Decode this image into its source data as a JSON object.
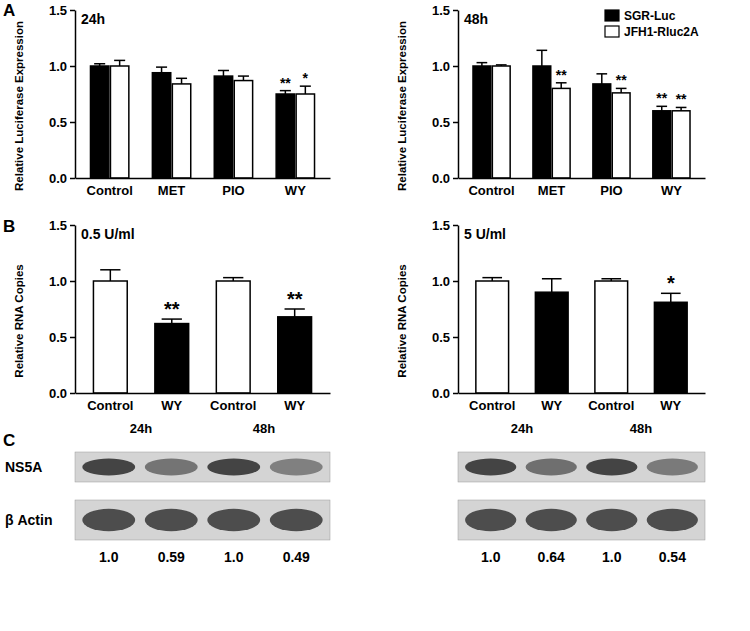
{
  "panels": [
    "A",
    "B",
    "C"
  ],
  "chart_data": [
    {
      "type": "bar",
      "title": "24h",
      "y_label": "Relative Luciferase Expression",
      "categories": [
        "Control",
        "MET",
        "PIO",
        "WY"
      ],
      "series": [
        {
          "name": "SGR-Luc",
          "color": "#000000",
          "values": [
            1.0,
            0.94,
            0.91,
            0.75
          ],
          "errors": [
            0.02,
            0.05,
            0.05,
            0.03
          ],
          "annotations": [
            null,
            null,
            null,
            "**"
          ]
        },
        {
          "name": "JFH1-Rluc2A",
          "color": "#ffffff",
          "values": [
            1.0,
            0.84,
            0.87,
            0.75
          ],
          "errors": [
            0.05,
            0.05,
            0.04,
            0.07
          ],
          "annotations": [
            null,
            null,
            null,
            "*"
          ]
        }
      ],
      "ylim": [
        0,
        1.5
      ],
      "yticks": [
        {
          "value": 0,
          "label": "0.0"
        },
        {
          "value": 0.5,
          "label": "0.5"
        },
        {
          "value": 1,
          "label": "1.0"
        },
        {
          "value": 1.5,
          "label": "1.5"
        }
      ]
    },
    {
      "type": "bar",
      "title": "48h",
      "y_label": "Relative Luciferase Expression",
      "categories": [
        "Control",
        "MET",
        "PIO",
        "WY"
      ],
      "series": [
        {
          "name": "SGR-Luc",
          "color": "#000000",
          "values": [
            1.0,
            1.0,
            0.84,
            0.6
          ],
          "errors": [
            0.03,
            0.14,
            0.09,
            0.04
          ],
          "annotations": [
            null,
            null,
            null,
            "**"
          ]
        },
        {
          "name": "JFH1-Rluc2A",
          "color": "#ffffff",
          "values": [
            1.0,
            0.8,
            0.76,
            0.6
          ],
          "errors": [
            0.01,
            0.05,
            0.04,
            0.03
          ],
          "annotations": [
            null,
            "**",
            "**",
            "**"
          ]
        }
      ],
      "legend": "upper right",
      "ylim": [
        0,
        1.5
      ],
      "yticks": [
        {
          "value": 0,
          "label": "0.0"
        },
        {
          "value": 0.5,
          "label": "0.5"
        },
        {
          "value": 1,
          "label": "1.0"
        },
        {
          "value": 1.5,
          "label": "1.5"
        }
      ]
    },
    {
      "type": "bar",
      "title": "0.5 U/ml",
      "y_label": "Relative RNA Copies",
      "categories": [
        "Control",
        "WY",
        "Control",
        "WY"
      ],
      "groups": [
        "24h",
        "48h"
      ],
      "values": [
        1.0,
        0.62,
        1.0,
        0.68
      ],
      "errors": [
        0.1,
        0.04,
        0.03,
        0.07
      ],
      "annotations": [
        null,
        "**",
        null,
        "**"
      ],
      "colors": [
        "#ffffff",
        "#000000",
        "#ffffff",
        "#000000"
      ],
      "ylim": [
        0,
        1.5
      ],
      "yticks": [
        {
          "value": 0,
          "label": "0.0"
        },
        {
          "value": 0.5,
          "label": "0.5"
        },
        {
          "value": 1,
          "label": "1.0"
        },
        {
          "value": 1.5,
          "label": "1.5"
        }
      ]
    },
    {
      "type": "bar",
      "title": "5 U/ml",
      "y_label": "Relative RNA Copies",
      "categories": [
        "Control",
        "WY",
        "Control",
        "WY"
      ],
      "groups": [
        "24h",
        "48h"
      ],
      "values": [
        1.0,
        0.9,
        1.0,
        0.81
      ],
      "errors": [
        0.03,
        0.12,
        0.02,
        0.08
      ],
      "annotations": [
        null,
        null,
        null,
        "*"
      ],
      "colors": [
        "#ffffff",
        "#000000",
        "#ffffff",
        "#000000"
      ],
      "ylim": [
        0,
        1.5
      ],
      "yticks": [
        {
          "value": 0,
          "label": "0.0"
        },
        {
          "value": 0.5,
          "label": "0.5"
        },
        {
          "value": 1,
          "label": "1.0"
        },
        {
          "value": 1.5,
          "label": "1.5"
        }
      ]
    }
  ],
  "blot": {
    "rows": [
      "NS5A",
      "β Actin"
    ],
    "panels": [
      {
        "values": [
          1.0,
          0.59,
          1.0,
          0.49
        ],
        "value_labels": [
          "1.0",
          "0.59",
          "1.0",
          "0.49"
        ]
      },
      {
        "values": [
          1.0,
          0.64,
          1.0,
          0.54
        ],
        "value_labels": [
          "1.0",
          "0.64",
          "1.0",
          "0.54"
        ]
      }
    ]
  }
}
